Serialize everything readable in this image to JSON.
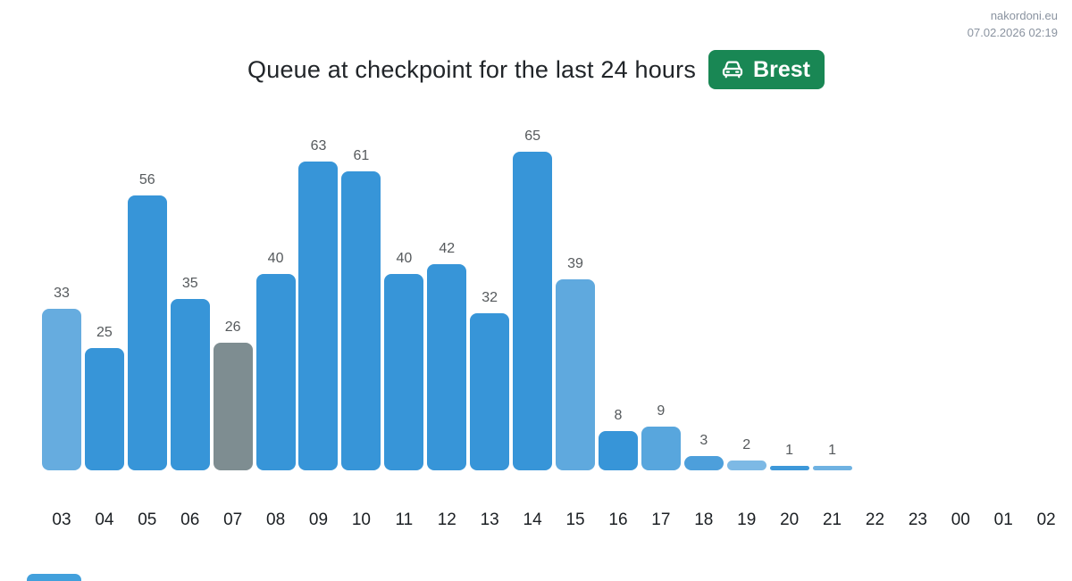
{
  "watermark": {
    "site": "nakordoni.eu",
    "datetime": "07.02.2026 02:19"
  },
  "header": {
    "title": "Queue at checkpoint for the last 24 hours",
    "badge": {
      "label": "Brest",
      "icon": "car-front-icon",
      "bg_color": "#198754",
      "text_color": "#ffffff"
    }
  },
  "chart_data": {
    "type": "bar",
    "title": "Queue at checkpoint for the last 24 hours",
    "xlabel": "",
    "ylabel": "",
    "ylim": [
      0,
      65
    ],
    "grid": false,
    "legend": "none",
    "value_labels_shown": true,
    "categories": [
      "03",
      "04",
      "05",
      "06",
      "07",
      "08",
      "09",
      "10",
      "11",
      "12",
      "13",
      "14",
      "15",
      "16",
      "17",
      "18",
      "19",
      "20",
      "21",
      "22",
      "23",
      "00",
      "01",
      "02"
    ],
    "values": [
      33,
      25,
      56,
      35,
      26,
      40,
      63,
      61,
      40,
      42,
      32,
      65,
      39,
      8,
      9,
      3,
      2,
      1,
      1,
      null,
      null,
      null,
      null,
      null
    ],
    "bar_colors": [
      "#66acdf",
      "#3795d8",
      "#3795d8",
      "#3795d8",
      "#7e8d91",
      "#3795d8",
      "#3795d8",
      "#3795d8",
      "#3795d8",
      "#3795d8",
      "#3795d8",
      "#3795d8",
      "#5fa9de",
      "#3795d8",
      "#58a6dd",
      "#4d9fdb",
      "#7db9e5",
      "#3d98d9",
      "#6fb2e2",
      null,
      null,
      null,
      null,
      null
    ],
    "value_label_color": "#55595c",
    "axis_label_color": "#1b1f23"
  },
  "colors": {
    "bar_default": "#3795d8",
    "bar_gray": "#7e8d91",
    "badge_green": "#198754",
    "next_chart_bar": "#42a0dc"
  }
}
